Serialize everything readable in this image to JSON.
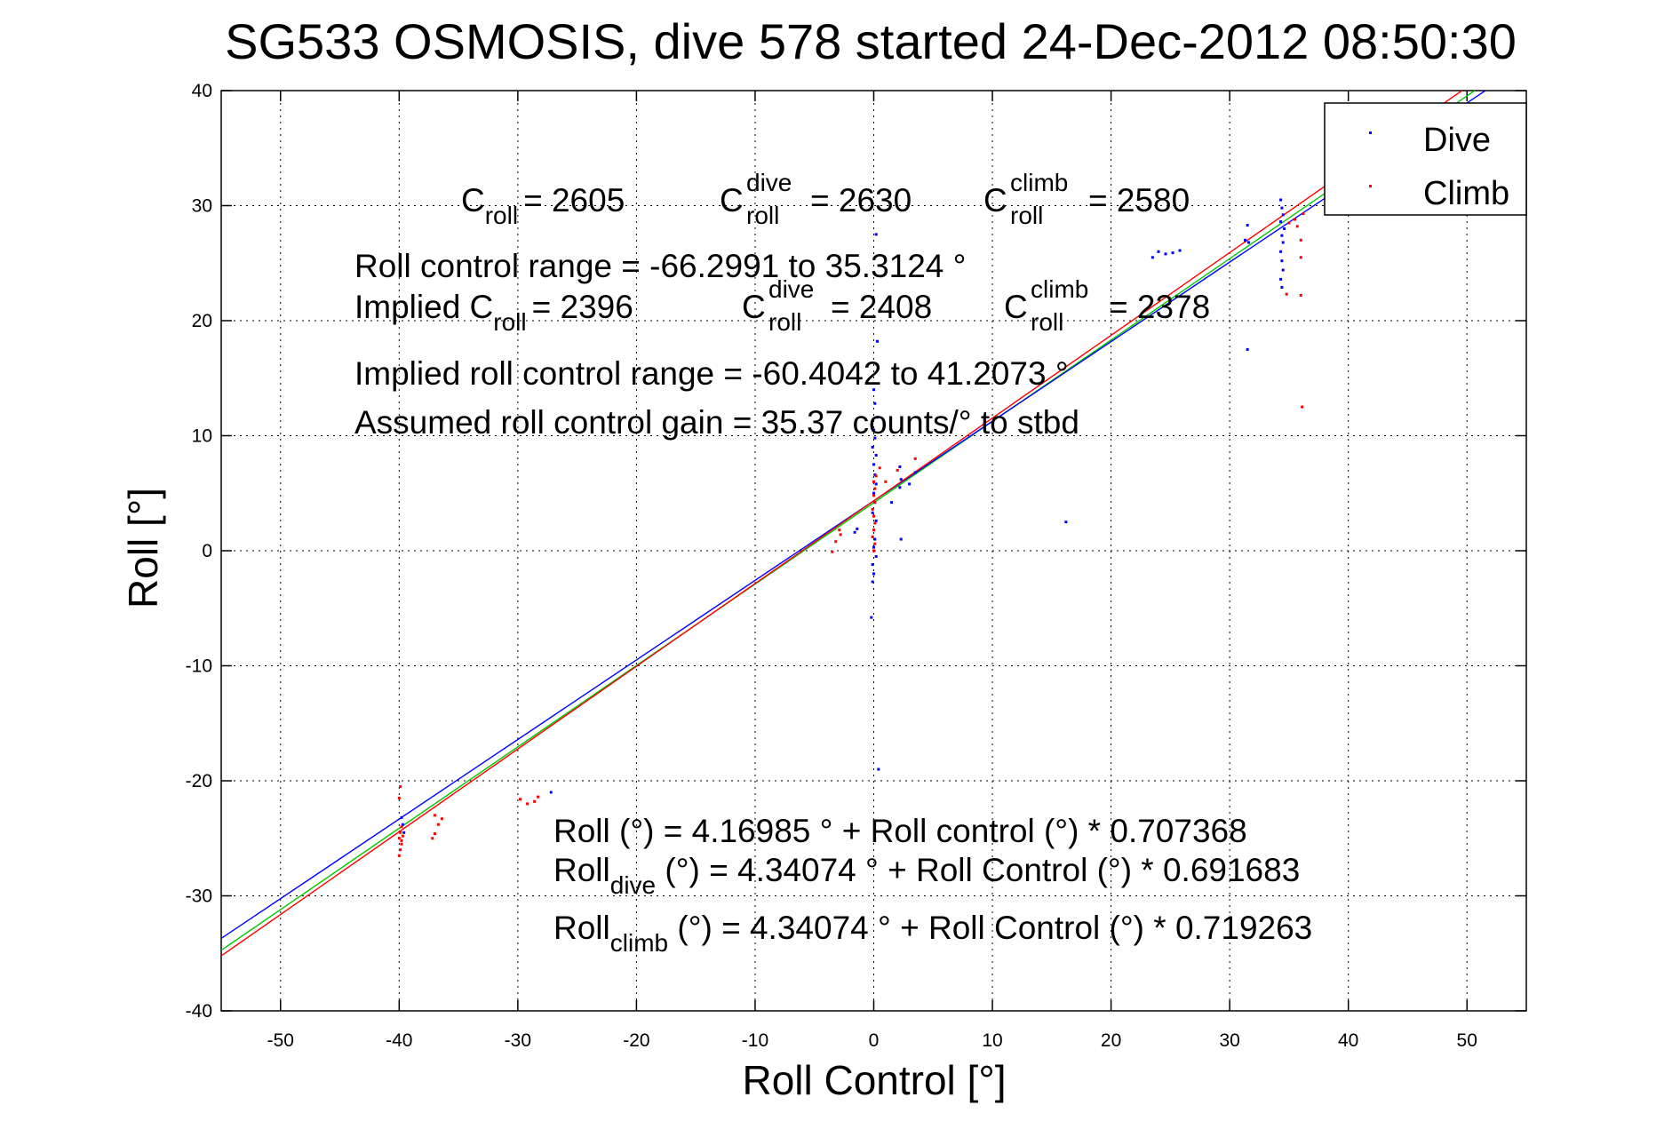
{
  "chart_data": {
    "type": "scatter",
    "title": "SG533 OSMOSIS, dive 578 started 24-Dec-2012 08:50:30",
    "xlabel": "Roll Control [°]",
    "ylabel": "Roll [°]",
    "xlim": [
      -55,
      55
    ],
    "ylim": [
      -40,
      40
    ],
    "xticks": [
      -50,
      -40,
      -30,
      -20,
      -10,
      0,
      10,
      20,
      30,
      40,
      50
    ],
    "yticks": [
      -40,
      -30,
      -20,
      -10,
      0,
      10,
      20,
      30,
      40
    ],
    "grid": true,
    "legend": {
      "position": "top-right",
      "entries": [
        "Dive",
        "Climb"
      ]
    },
    "colors": {
      "dive": "#0000ff",
      "climb": "#ff0000",
      "fit_all": "#00cc00",
      "fit_dive": "#0000ff",
      "fit_climb": "#ff0000"
    },
    "series": [
      {
        "name": "Dive",
        "points": [
          [
            -39.8,
            -23.2
          ],
          [
            -39.7,
            -23.8
          ],
          [
            -39.6,
            -24.5
          ],
          [
            -27.2,
            -21.0
          ],
          [
            -1.6,
            1.6
          ],
          [
            -1.4,
            1.9
          ],
          [
            -0.2,
            -5.8
          ],
          [
            -0.1,
            -2.7
          ],
          [
            0.0,
            -2.0
          ],
          [
            -0.1,
            -1.2
          ],
          [
            0.2,
            -0.5
          ],
          [
            0.0,
            0.3
          ],
          [
            0.1,
            1.0
          ],
          [
            0.0,
            1.8
          ],
          [
            0.2,
            2.6
          ],
          [
            -0.1,
            3.3
          ],
          [
            0.1,
            4.2
          ],
          [
            0.0,
            5.0
          ],
          [
            0.2,
            5.8
          ],
          [
            0.1,
            6.6
          ],
          [
            0.0,
            7.5
          ],
          [
            0.2,
            8.3
          ],
          [
            -0.1,
            9.0
          ],
          [
            0.1,
            9.8
          ],
          [
            0.0,
            10.5
          ],
          [
            0.3,
            11.6
          ],
          [
            0.1,
            12.8
          ],
          [
            0.0,
            14.0
          ],
          [
            0.3,
            18.2
          ],
          [
            0.2,
            27.5
          ],
          [
            0.4,
            -19.0
          ],
          [
            1.5,
            4.2
          ],
          [
            2.2,
            5.5
          ],
          [
            2.3,
            6.2
          ],
          [
            2.2,
            7.3
          ],
          [
            2.3,
            1.0
          ],
          [
            3.0,
            5.8
          ],
          [
            3.5,
            6.8
          ],
          [
            16.2,
            2.5
          ],
          [
            23.5,
            25.5
          ],
          [
            24.0,
            26.0
          ],
          [
            24.6,
            25.8
          ],
          [
            25.2,
            25.9
          ],
          [
            25.8,
            26.1
          ],
          [
            31.5,
            17.5
          ],
          [
            31.3,
            27.0
          ],
          [
            31.6,
            26.8
          ],
          [
            31.5,
            28.3
          ],
          [
            34.3,
            30.5
          ],
          [
            34.4,
            29.8
          ],
          [
            34.5,
            29.2
          ],
          [
            34.3,
            28.6
          ],
          [
            34.6,
            28.0
          ],
          [
            34.4,
            27.4
          ],
          [
            34.5,
            26.8
          ],
          [
            34.3,
            26.0
          ],
          [
            34.4,
            25.2
          ],
          [
            34.5,
            24.4
          ],
          [
            34.3,
            23.6
          ],
          [
            34.4,
            22.9
          ]
        ]
      },
      {
        "name": "Climb",
        "points": [
          [
            -39.9,
            -20.5
          ],
          [
            -40.0,
            -21.5
          ],
          [
            -39.8,
            -24.0
          ],
          [
            -39.9,
            -24.5
          ],
          [
            -40.0,
            -25.0
          ],
          [
            -39.8,
            -25.5
          ],
          [
            -39.9,
            -26.0
          ],
          [
            -40.0,
            -26.5
          ],
          [
            -39.7,
            -24.8
          ],
          [
            -39.8,
            -25.2
          ],
          [
            -37.0,
            -23.0
          ],
          [
            -36.7,
            -23.8
          ],
          [
            -36.4,
            -23.3
          ],
          [
            -37.0,
            -24.6
          ],
          [
            -37.2,
            -25.0
          ],
          [
            -29.8,
            -21.6
          ],
          [
            -29.2,
            -22.0
          ],
          [
            -28.6,
            -21.8
          ],
          [
            -28.3,
            -21.4
          ],
          [
            -3.5,
            -0.1
          ],
          [
            -3.2,
            0.8
          ],
          [
            -2.8,
            1.4
          ],
          [
            -2.9,
            1.8
          ],
          [
            0.0,
            0.0
          ],
          [
            0.1,
            0.6
          ],
          [
            -0.1,
            1.2
          ],
          [
            0.0,
            1.8
          ],
          [
            0.1,
            2.4
          ],
          [
            0.0,
            3.0
          ],
          [
            -0.1,
            3.6
          ],
          [
            0.1,
            4.2
          ],
          [
            0.0,
            4.8
          ],
          [
            0.1,
            5.4
          ],
          [
            0.0,
            6.0
          ],
          [
            0.2,
            6.5
          ],
          [
            0.5,
            7.2
          ],
          [
            1.0,
            6.0
          ],
          [
            2.0,
            7.0
          ],
          [
            3.5,
            8.0
          ],
          [
            35.0,
            28.5
          ],
          [
            35.5,
            28.8
          ],
          [
            35.7,
            28.2
          ],
          [
            36.0,
            27.0
          ],
          [
            36.2,
            29.3
          ],
          [
            36.0,
            25.5
          ],
          [
            36.0,
            22.2
          ],
          [
            34.8,
            22.3
          ],
          [
            36.1,
            12.5
          ]
        ]
      }
    ],
    "fits": [
      {
        "name": "all",
        "intercept": 4.16985,
        "slope": 0.707368
      },
      {
        "name": "dive",
        "intercept": 4.34074,
        "slope": 0.691683
      },
      {
        "name": "climb",
        "intercept": 4.34074,
        "slope": 0.719263
      }
    ],
    "annotations": {
      "c_roll": {
        "base": "C",
        "sub": "roll",
        "value": "= 2605"
      },
      "c_dive": {
        "base": "C",
        "sup": "dive",
        "sub": "roll",
        "value": "= 2630"
      },
      "c_climb": {
        "base": "C",
        "sup": "climb",
        "sub": "roll",
        "value": "= 2580"
      },
      "range": "Roll control range = -66.2991 to 35.3124 °",
      "implied_prefix": "Implied C",
      "implied_sub": "roll",
      "implied_value": "= 2396",
      "implied_dive": {
        "base": "C",
        "sup": "dive",
        "sub": "roll",
        "value": "= 2408"
      },
      "implied_climb": {
        "base": "C",
        "sup": "climb",
        "sub": "roll",
        "value": "= 2378"
      },
      "implied_range": "Implied roll control range = -60.4042 to 41.2073 °",
      "gain": "Assumed roll control gain = 35.37 counts/° to stbd",
      "eq_all": "Roll (°) = 4.16985 ° + Roll control (°) * 0.707368",
      "eq_dive_base": "Roll",
      "eq_dive_sub": "dive",
      "eq_dive_rest": " (°) = 4.34074 ° + Roll Control (°) * 0.691683",
      "eq_climb_base": "Roll",
      "eq_climb_sub": "climb",
      "eq_climb_rest": " (°) = 4.34074 ° + Roll Control (°) * 0.719263"
    }
  }
}
